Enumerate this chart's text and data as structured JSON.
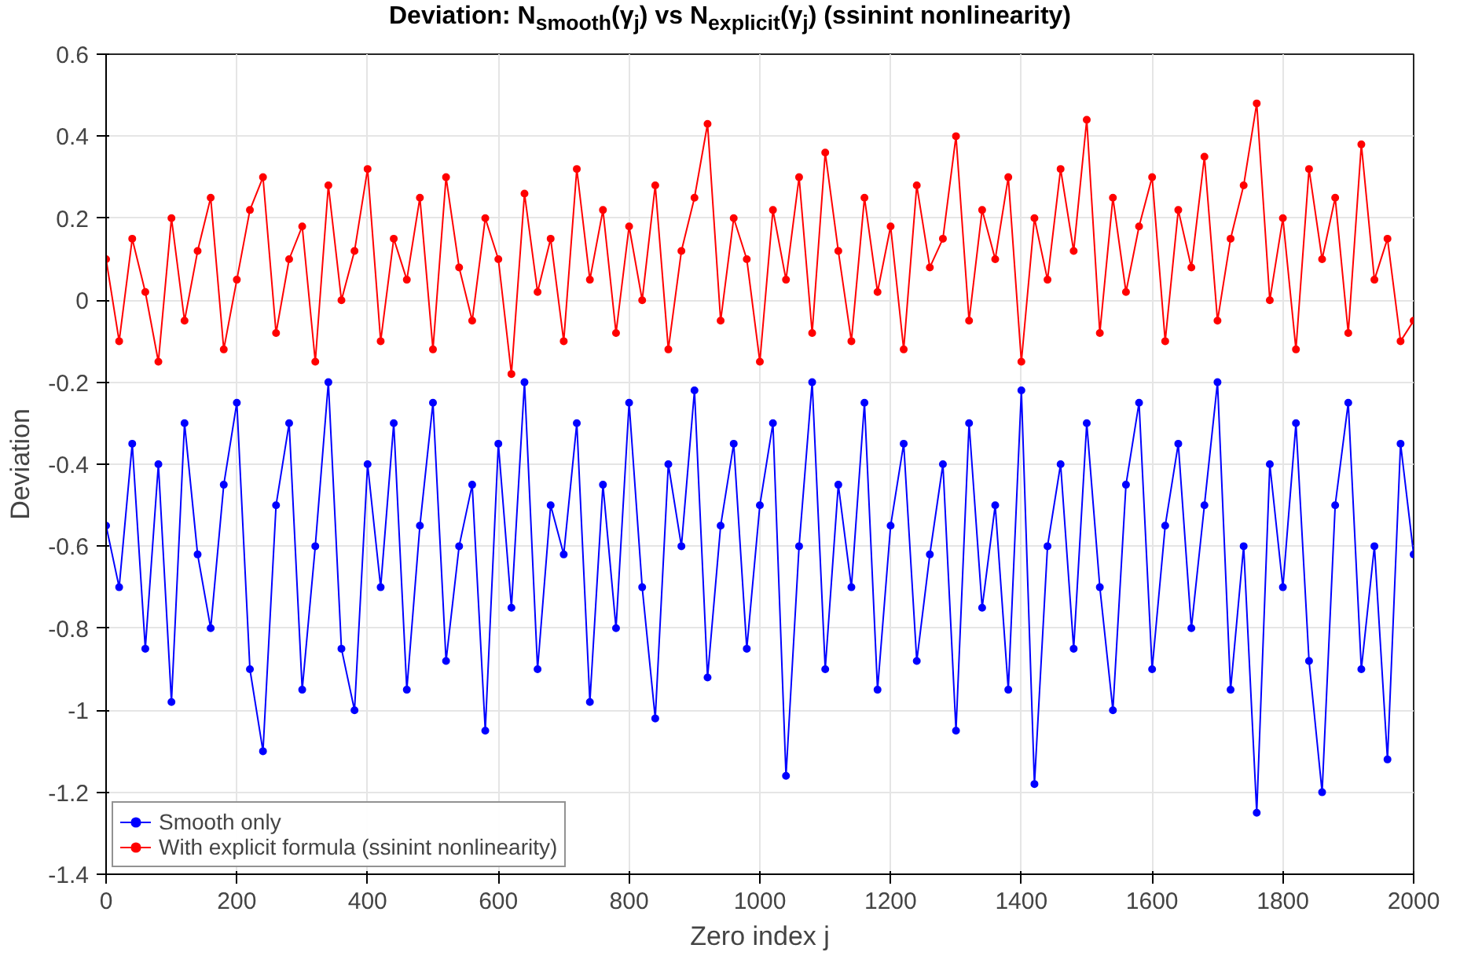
{
  "chart_data": {
    "type": "line",
    "title": "Deviation: N$_{smooth}$(γ$_{j}$) vs N$_{explicit}$(γ$_{j}$) (ssinint nonlinearity)",
    "xlabel": "Zero index j",
    "ylabel": "Deviation",
    "x": [
      0,
      20,
      40,
      60,
      80,
      100,
      120,
      140,
      160,
      180,
      200,
      220,
      240,
      260,
      280,
      300,
      320,
      340,
      360,
      380,
      400,
      420,
      440,
      460,
      480,
      500,
      520,
      540,
      560,
      580,
      600,
      620,
      640,
      660,
      680,
      700,
      720,
      740,
      760,
      780,
      800,
      820,
      840,
      860,
      880,
      900,
      920,
      940,
      960,
      980,
      1000,
      1020,
      1040,
      1060,
      1080,
      1100,
      1120,
      1140,
      1160,
      1180,
      1200,
      1220,
      1240,
      1260,
      1280,
      1300,
      1320,
      1340,
      1360,
      1380,
      1400,
      1420,
      1440,
      1460,
      1480,
      1500,
      1520,
      1540,
      1560,
      1580,
      1600,
      1620,
      1640,
      1660,
      1680,
      1700,
      1720,
      1740,
      1760,
      1780,
      1800,
      1820,
      1840,
      1860,
      1880,
      1900,
      1920,
      1940,
      1960,
      1980,
      2000
    ],
    "series": [
      {
        "name": "Smooth only",
        "color": "#0000ff",
        "values": [
          -0.55,
          -0.7,
          -0.35,
          -0.85,
          -0.4,
          -0.98,
          -0.3,
          -0.62,
          -0.8,
          -0.45,
          -0.25,
          -0.9,
          -1.1,
          -0.5,
          -0.3,
          -0.95,
          -0.6,
          -0.2,
          -0.85,
          -1.0,
          -0.4,
          -0.7,
          -0.3,
          -0.95,
          -0.55,
          -0.25,
          -0.88,
          -0.6,
          -0.45,
          -1.05,
          -0.35,
          -0.75,
          -0.2,
          -0.9,
          -0.5,
          -0.62,
          -0.3,
          -0.98,
          -0.45,
          -0.8,
          -0.25,
          -0.7,
          -1.02,
          -0.4,
          -0.6,
          -0.22,
          -0.92,
          -0.55,
          -0.35,
          -0.85,
          -0.5,
          -0.3,
          -1.16,
          -0.6,
          -0.2,
          -0.9,
          -0.45,
          -0.7,
          -0.25,
          -0.95,
          -0.55,
          -0.35,
          -0.88,
          -0.62,
          -0.4,
          -1.05,
          -0.3,
          -0.75,
          -0.5,
          -0.95,
          -0.22,
          -1.18,
          -0.6,
          -0.4,
          -0.85,
          -0.3,
          -0.7,
          -1.0,
          -0.45,
          -0.25,
          -0.9,
          -0.55,
          -0.35,
          -0.8,
          -0.5,
          -0.2,
          -0.95,
          -0.6,
          -1.25,
          -0.4,
          -0.7,
          -0.3,
          -0.88,
          -1.2,
          -0.5,
          -0.25,
          -0.9,
          -0.6,
          -1.12,
          -0.35,
          -0.62
        ]
      },
      {
        "name": "With explicit formula (ssinint nonlinearity)",
        "color": "#ff0000",
        "values": [
          0.1,
          -0.1,
          0.15,
          0.02,
          -0.15,
          0.2,
          -0.05,
          0.12,
          0.25,
          -0.12,
          0.05,
          0.22,
          0.3,
          -0.08,
          0.1,
          0.18,
          -0.15,
          0.28,
          0.0,
          0.12,
          0.32,
          -0.1,
          0.15,
          0.05,
          0.25,
          -0.12,
          0.3,
          0.08,
          -0.05,
          0.2,
          0.1,
          -0.18,
          0.26,
          0.02,
          0.15,
          -0.1,
          0.32,
          0.05,
          0.22,
          -0.08,
          0.18,
          0.0,
          0.28,
          -0.12,
          0.12,
          0.25,
          0.43,
          -0.05,
          0.2,
          0.1,
          -0.15,
          0.22,
          0.05,
          0.3,
          -0.08,
          0.36,
          0.12,
          -0.1,
          0.25,
          0.02,
          0.18,
          -0.12,
          0.28,
          0.08,
          0.15,
          0.4,
          -0.05,
          0.22,
          0.1,
          0.3,
          -0.15,
          0.2,
          0.05,
          0.32,
          0.12,
          0.44,
          -0.08,
          0.25,
          0.02,
          0.18,
          0.3,
          -0.1,
          0.22,
          0.08,
          0.35,
          -0.05,
          0.15,
          0.28,
          0.48,
          0.0,
          0.2,
          -0.12,
          0.32,
          0.1,
          0.25,
          -0.08,
          0.38,
          0.05,
          0.15,
          -0.1,
          -0.05
        ]
      }
    ],
    "xlim": [
      0,
      2000
    ],
    "xticks": [
      0,
      200,
      400,
      600,
      800,
      1000,
      1200,
      1400,
      1600,
      1800,
      2000
    ],
    "ylim": [
      -1.4,
      0.6
    ],
    "yticks": [
      -1.4,
      -1.2,
      -1,
      -0.8,
      -0.6,
      -0.4,
      -0.2,
      0,
      0.2,
      0.4,
      0.6
    ],
    "grid": true,
    "legend": "bottom left",
    "marker": "circle",
    "line_style": "solid"
  }
}
